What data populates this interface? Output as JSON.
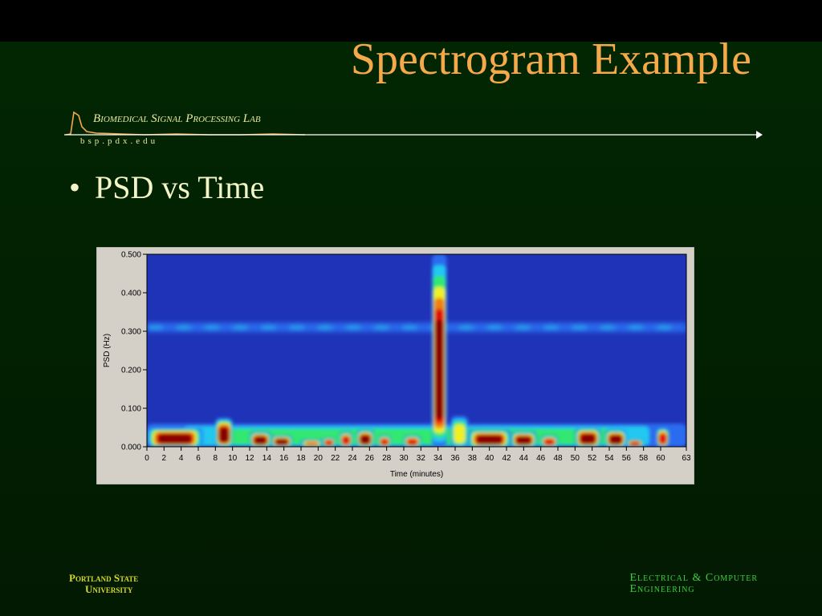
{
  "slide": {
    "title": "Spectrogram Example",
    "lab_name": "Biomedical Signal Processing Lab",
    "lab_url": "bsp.pdx.edu",
    "bullet": "PSD vs Time",
    "footer_left_line1": "Portland State",
    "footer_left_line2": "University",
    "footer_right_line1": "Electrical & Computer",
    "footer_right_line2": "Engineering"
  },
  "colors": {
    "title": "#f5a94a",
    "background_top": "#000000",
    "background": "#022602",
    "plot_background": "#1f33b8",
    "panel": "#d4d0c8",
    "footer_left": "#d8d828",
    "footer_right": "#3ecf3e"
  },
  "chart_data": {
    "type": "heatmap",
    "title": "",
    "xlabel": "Time (minutes)",
    "ylabel": "PSD (Hz)",
    "xlim": [
      0,
      63
    ],
    "ylim": [
      0,
      0.5
    ],
    "x_ticks": [
      "0",
      "2",
      "4",
      "6",
      "8",
      "10",
      "12",
      "14",
      "16",
      "18",
      "20",
      "22",
      "24",
      "26",
      "28",
      "30",
      "32",
      "34",
      "36",
      "38",
      "40",
      "42",
      "44",
      "46",
      "48",
      "50",
      "52",
      "54",
      "56",
      "58",
      "60",
      "63"
    ],
    "y_ticks": [
      "0.000",
      "0.100",
      "0.200",
      "0.300",
      "0.400",
      "0.500"
    ],
    "y_tick_values": [
      0,
      0.1,
      0.2,
      0.3,
      0.4,
      0.5
    ],
    "colormap": [
      "#1f33b8",
      "#2a6cf0",
      "#22c8f0",
      "#30e870",
      "#f0f020",
      "#f08010",
      "#e01010",
      "#8a0000"
    ],
    "bands": [
      {
        "t0": 0,
        "t1": 63,
        "f": 0.31,
        "level": 0.3
      }
    ],
    "hotspots": [
      {
        "t0": 0,
        "t1": 6.5,
        "f0": 0.0,
        "f1": 0.05,
        "level": 1.0
      },
      {
        "t0": 8,
        "t1": 10,
        "f0": 0.0,
        "f1": 0.075,
        "level": 1.0
      },
      {
        "t0": 12,
        "t1": 14.5,
        "f0": 0.0,
        "f1": 0.04,
        "level": 1.0
      },
      {
        "t0": 14.5,
        "t1": 17,
        "f0": 0.0,
        "f1": 0.03,
        "level": 0.95
      },
      {
        "t0": 18,
        "t1": 20.5,
        "f0": 0.0,
        "f1": 0.02,
        "level": 0.75
      },
      {
        "t0": 20.5,
        "t1": 22,
        "f0": 0.0,
        "f1": 0.025,
        "level": 0.85
      },
      {
        "t0": 22.5,
        "t1": 24,
        "f0": 0.0,
        "f1": 0.04,
        "level": 0.9
      },
      {
        "t0": 24.5,
        "t1": 26.5,
        "f0": 0.0,
        "f1": 0.045,
        "level": 0.95
      },
      {
        "t0": 27,
        "t1": 28.5,
        "f0": 0.0,
        "f1": 0.03,
        "level": 0.85
      },
      {
        "t0": 30,
        "t1": 32,
        "f0": 0.0,
        "f1": 0.03,
        "level": 0.85
      },
      {
        "t0": 33.3,
        "t1": 35.0,
        "f0": 0.0,
        "f1": 0.5,
        "level": 1.0
      },
      {
        "t0": 35.5,
        "t1": 37.5,
        "f0": 0.0,
        "f1": 0.08,
        "level": 0.5
      },
      {
        "t0": 37.5,
        "t1": 42.5,
        "f0": 0.0,
        "f1": 0.045,
        "level": 1.0
      },
      {
        "t0": 42.5,
        "t1": 45.5,
        "f0": 0.0,
        "f1": 0.04,
        "level": 1.0
      },
      {
        "t0": 46,
        "t1": 48,
        "f0": 0.0,
        "f1": 0.03,
        "level": 0.8
      },
      {
        "t0": 50,
        "t1": 53,
        "f0": 0.0,
        "f1": 0.05,
        "level": 1.0
      },
      {
        "t0": 53.5,
        "t1": 56,
        "f0": 0.0,
        "f1": 0.045,
        "level": 1.0
      },
      {
        "t0": 56,
        "t1": 58,
        "f0": 0.0,
        "f1": 0.02,
        "level": 0.8
      },
      {
        "t0": 59.5,
        "t1": 61,
        "f0": 0.0,
        "f1": 0.05,
        "level": 0.9
      },
      {
        "t0": 0,
        "t1": 63,
        "f0": 0.0,
        "f1": 0.06,
        "level": 0.45
      }
    ]
  }
}
